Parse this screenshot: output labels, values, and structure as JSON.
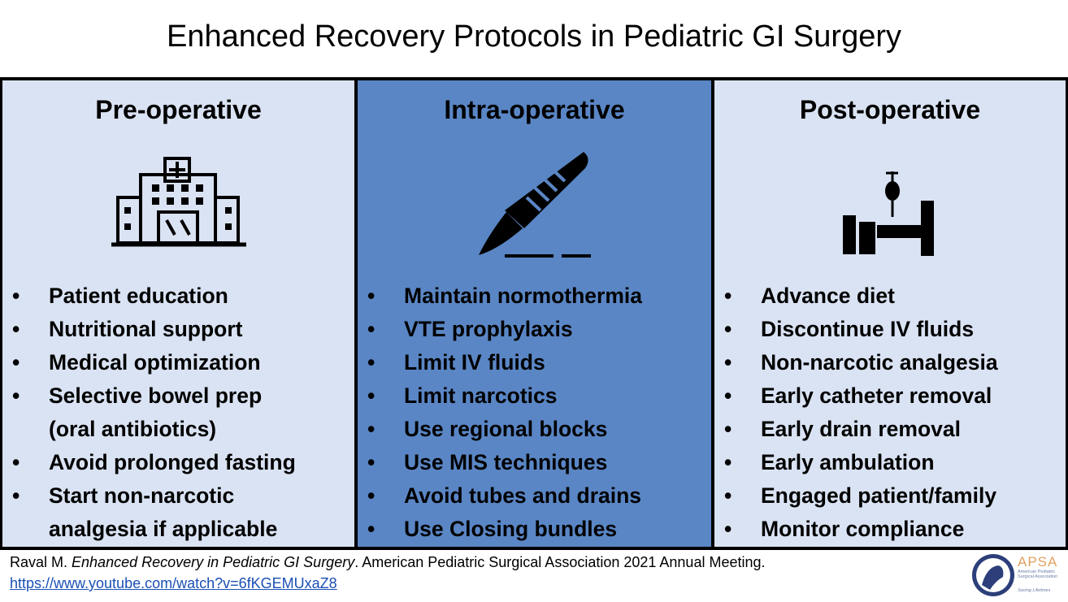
{
  "title": "Enhanced Recovery Protocols in Pediatric GI Surgery",
  "columns": [
    {
      "heading": "Pre-operative",
      "items": [
        [
          "Patient education"
        ],
        [
          "Nutritional support"
        ],
        [
          "Medical optimization"
        ],
        [
          "Selective bowel prep",
          "(oral antibiotics)"
        ],
        [
          "Avoid prolonged fasting"
        ],
        [
          "Start non-narcotic",
          "analgesia if applicable"
        ]
      ]
    },
    {
      "heading": "Intra-operative",
      "items": [
        [
          "Maintain normothermia"
        ],
        [
          "VTE prophylaxis"
        ],
        [
          "Limit IV fluids"
        ],
        [
          "Limit narcotics"
        ],
        [
          "Use regional blocks"
        ],
        [
          "Use MIS techniques"
        ],
        [
          "Avoid tubes and drains"
        ],
        [
          "Use Closing bundles"
        ]
      ]
    },
    {
      "heading": "Post-operative",
      "items": [
        [
          "Advance diet"
        ],
        [
          "Discontinue IV fluids"
        ],
        [
          "Non-narcotic analgesia"
        ],
        [
          "Early catheter removal"
        ],
        [
          "Early drain removal"
        ],
        [
          "Early ambulation"
        ],
        [
          "Engaged patient/family"
        ],
        [
          "Monitor compliance"
        ]
      ]
    }
  ],
  "citation": {
    "author": "Raval M. ",
    "work": "Enhanced Recovery in Pediatric GI Surgery",
    "rest": ". American Pediatric Surgical Association 2021 Annual Meeting.",
    "url": "https://www.youtube.com/watch?v=6fKGEMUxaZ8"
  },
  "logo": {
    "abbr": "APSA",
    "name": "American Pediatric Surgical Association",
    "tagline": "Saving Lifetimes"
  }
}
